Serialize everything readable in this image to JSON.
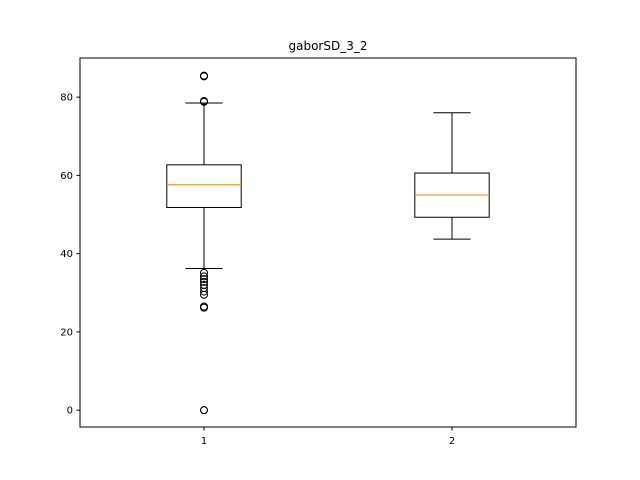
{
  "chart_data": {
    "type": "boxplot",
    "title": "gaborSD_3_2",
    "xlabel": "",
    "ylabel": "",
    "categories": [
      "1",
      "2"
    ],
    "ylim": [
      -4.3,
      90
    ],
    "yticks": [
      0,
      20,
      40,
      60,
      80
    ],
    "grid": false,
    "boxes": [
      {
        "category": "1",
        "whisker_low": 36.2,
        "q1": 51.8,
        "median": 57.6,
        "q3": 62.7,
        "whisker_high": 78.5,
        "outliers": [
          85.5,
          85.3,
          79.0,
          78.8,
          35.1,
          34.2,
          33.5,
          32.8,
          32.0,
          31.2,
          30.3,
          29.5,
          26.5,
          26.2,
          0.0,
          0.0
        ]
      },
      {
        "category": "2",
        "whisker_low": 43.7,
        "q1": 49.3,
        "median": 55.0,
        "q3": 60.6,
        "whisker_high": 76.0,
        "outliers": []
      }
    ],
    "colors": {
      "box": "#000000",
      "median": "#ff7f0e",
      "outlier": "#000000"
    }
  }
}
